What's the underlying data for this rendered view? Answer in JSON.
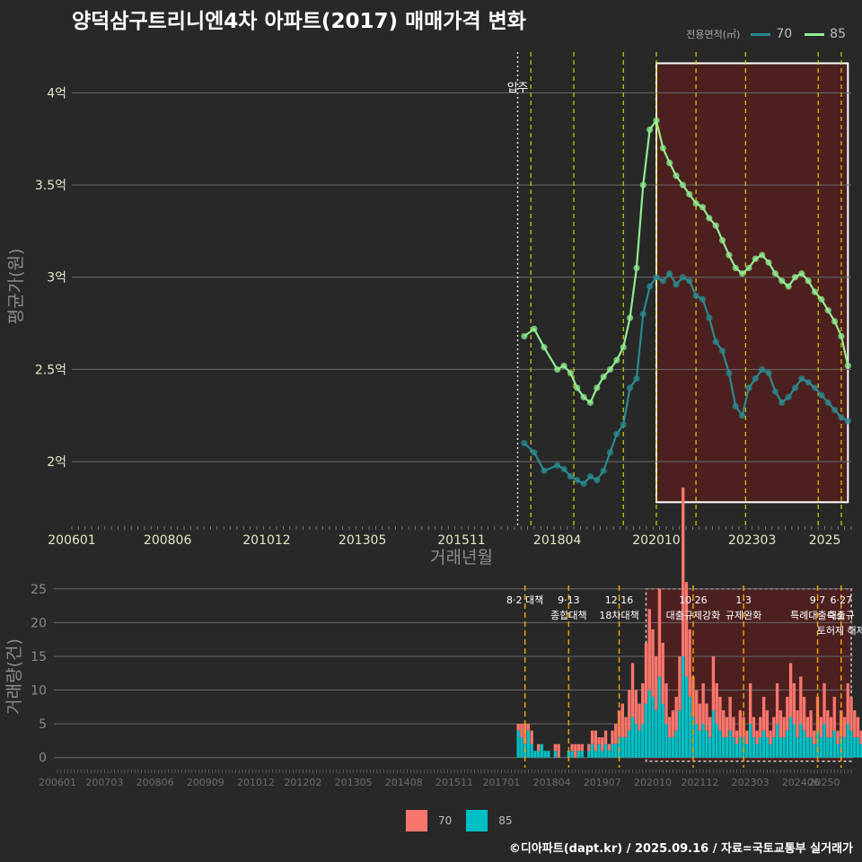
{
  "title": "양덕삼구트리니엔4차 아파트(2017) 매매가격 변화",
  "legend": {
    "title": "전용면적(㎡)",
    "items": [
      {
        "label": "70",
        "line_color": "#2a8a8e",
        "bar_color": "#f8766d"
      },
      {
        "label": "85",
        "line_color": "#90ee90",
        "bar_color": "#00bfc4"
      }
    ]
  },
  "credit": "©디아파트(dapt.kr) / 2025.09.16 / 자료=국토교통부 실거래가",
  "chart_data": [
    {
      "type": "line",
      "xlabel": "거래년월",
      "ylabel": "평균가(원)",
      "x_ticks": [
        "200601",
        "200806",
        "201012",
        "201305",
        "201511",
        "201804",
        "202010",
        "202303",
        "2025"
      ],
      "y_ticks": [
        "2억",
        "2.5억",
        "3억",
        "3.5억",
        "4억"
      ],
      "ylim": [
        165000000,
        425000000
      ],
      "xlim": [
        "2006-01",
        "2025-09"
      ],
      "vline_label": "입주",
      "move_in": "2017-04",
      "policy_dates": [
        "2017-08",
        "2018-09",
        "2019-12",
        "2020-10",
        "2021-10",
        "2023-01",
        "2024-11",
        "2025-06"
      ],
      "highlight": {
        "from": "2020-10",
        "to": "2025-08",
        "ymin": 178000000,
        "ymax": 416000000
      },
      "series": [
        {
          "name": "70",
          "color": "#2a8a8e",
          "x": [
            "2017-06",
            "2017-09",
            "2017-12",
            "2018-04",
            "2018-06",
            "2018-08",
            "2018-10",
            "2018-12",
            "2019-02",
            "2019-04",
            "2019-06",
            "2019-08",
            "2019-10",
            "2019-12",
            "2020-02",
            "2020-04",
            "2020-06",
            "2020-08",
            "2020-10",
            "2020-12",
            "2021-02",
            "2021-04",
            "2021-06",
            "2021-08",
            "2021-10",
            "2021-12",
            "2022-02",
            "2022-04",
            "2022-06",
            "2022-08",
            "2022-10",
            "2022-12",
            "2023-02",
            "2023-04",
            "2023-06",
            "2023-08",
            "2023-10",
            "2023-12",
            "2024-02",
            "2024-04",
            "2024-06",
            "2024-08",
            "2024-10",
            "2024-12",
            "2025-02",
            "2025-04",
            "2025-06",
            "2025-08"
          ],
          "y": [
            210000000,
            205000000,
            195000000,
            198000000,
            196000000,
            192000000,
            190000000,
            188000000,
            192000000,
            190000000,
            195000000,
            205000000,
            215000000,
            220000000,
            240000000,
            245000000,
            280000000,
            295000000,
            300000000,
            298000000,
            302000000,
            296000000,
            300000000,
            298000000,
            290000000,
            288000000,
            278000000,
            265000000,
            260000000,
            248000000,
            230000000,
            225000000,
            240000000,
            245000000,
            250000000,
            248000000,
            238000000,
            232000000,
            235000000,
            240000000,
            245000000,
            243000000,
            240000000,
            236000000,
            232000000,
            228000000,
            224000000,
            222000000
          ]
        },
        {
          "name": "85",
          "color": "#90ee90",
          "x": [
            "2017-06",
            "2017-09",
            "2017-12",
            "2018-04",
            "2018-06",
            "2018-08",
            "2018-10",
            "2018-12",
            "2019-02",
            "2019-04",
            "2019-06",
            "2019-08",
            "2019-10",
            "2019-12",
            "2020-02",
            "2020-04",
            "2020-06",
            "2020-08",
            "2020-10",
            "2020-12",
            "2021-02",
            "2021-04",
            "2021-06",
            "2021-08",
            "2021-10",
            "2021-12",
            "2022-02",
            "2022-04",
            "2022-06",
            "2022-08",
            "2022-10",
            "2022-12",
            "2023-02",
            "2023-04",
            "2023-06",
            "2023-08",
            "2023-10",
            "2023-12",
            "2024-02",
            "2024-04",
            "2024-06",
            "2024-08",
            "2024-10",
            "2024-12",
            "2025-02",
            "2025-04",
            "2025-06",
            "2025-08"
          ],
          "y": [
            268000000,
            272000000,
            262000000,
            250000000,
            252000000,
            248000000,
            240000000,
            235000000,
            232000000,
            240000000,
            246000000,
            250000000,
            255000000,
            262000000,
            278000000,
            305000000,
            350000000,
            380000000,
            385000000,
            370000000,
            362000000,
            355000000,
            350000000,
            345000000,
            340000000,
            338000000,
            332000000,
            328000000,
            320000000,
            312000000,
            305000000,
            302000000,
            305000000,
            310000000,
            312000000,
            308000000,
            302000000,
            298000000,
            295000000,
            300000000,
            302000000,
            298000000,
            292000000,
            288000000,
            282000000,
            276000000,
            268000000,
            252000000
          ]
        }
      ]
    },
    {
      "type": "bar",
      "xlabel": "",
      "ylabel": "거래량(건)",
      "x_ticks": [
        "200601",
        "200703",
        "200806",
        "200909",
        "201012",
        "201202",
        "201305",
        "201408",
        "201511",
        "201701",
        "201804",
        "201907",
        "202010",
        "202112",
        "202303",
        "202406",
        "20250"
      ],
      "y_ticks": [
        "0",
        "5",
        "10",
        "15",
        "20",
        "25"
      ],
      "ylim": [
        -1.5,
        25.5
      ],
      "xlim": [
        "2006-01",
        "2025-09"
      ],
      "annotations": [
        {
          "date": "2017-08",
          "lines": [
            "8·2 대책"
          ]
        },
        {
          "date": "2018-09",
          "lines": [
            "9·13",
            "종합대책"
          ]
        },
        {
          "date": "2019-12",
          "lines": [
            "12·16",
            "18차대책"
          ]
        },
        {
          "date": "2021-10",
          "lines": [
            "10·26",
            "대출규제강화"
          ]
        },
        {
          "date": "2023-01",
          "lines": [
            "1·3",
            "규제완화"
          ]
        },
        {
          "date": "2024-11",
          "lines": [
            "9·7",
            "특례대출축소"
          ]
        },
        {
          "date": "2025-06",
          "lines": [
            "6·27",
            "대출규",
            "토허제 해제"
          ]
        }
      ],
      "series": [
        {
          "name": "70",
          "color": "#f8766d",
          "start": "2017-06",
          "values": [
            1,
            2,
            3,
            1,
            2,
            0,
            1,
            0,
            0,
            0,
            0,
            1,
            2,
            0,
            0,
            0,
            1,
            2,
            1,
            1,
            0,
            1,
            2,
            3,
            1,
            2,
            2,
            1,
            2,
            3,
            4,
            5,
            3,
            6,
            8,
            5,
            4,
            6,
            9,
            12,
            10,
            8,
            13,
            9,
            6,
            3,
            4,
            5,
            8,
            25,
            14,
            10,
            6,
            5,
            4,
            6,
            4,
            3,
            8,
            6,
            5,
            4,
            3,
            5,
            3,
            2,
            4,
            3,
            2,
            6,
            3,
            2,
            3,
            5,
            4,
            2,
            3,
            6,
            4,
            3,
            5,
            8,
            6,
            4,
            7,
            5,
            3,
            4,
            2,
            5,
            3,
            6,
            4,
            3,
            5,
            2,
            4,
            3,
            6,
            5,
            4,
            3,
            2,
            3
          ]
        },
        {
          "name": "85",
          "color": "#00bfc4",
          "start": "2017-06",
          "values": [
            4,
            3,
            2,
            4,
            2,
            1,
            1,
            2,
            1,
            1,
            0,
            1,
            0,
            0,
            0,
            1,
            1,
            0,
            1,
            1,
            0,
            1,
            2,
            1,
            2,
            1,
            2,
            1,
            2,
            2,
            3,
            3,
            3,
            4,
            6,
            5,
            4,
            5,
            8,
            10,
            9,
            7,
            12,
            8,
            5,
            3,
            3,
            4,
            7,
            15,
            12,
            9,
            6,
            5,
            4,
            5,
            4,
            3,
            7,
            5,
            4,
            3,
            3,
            4,
            3,
            2,
            3,
            3,
            2,
            5,
            3,
            2,
            3,
            4,
            3,
            2,
            3,
            5,
            3,
            3,
            4,
            6,
            5,
            3,
            5,
            4,
            3,
            3,
            2,
            4,
            3,
            5,
            3,
            3,
            4,
            2,
            3,
            3,
            5,
            4,
            3,
            3,
            2,
            2
          ]
        }
      ]
    }
  ]
}
